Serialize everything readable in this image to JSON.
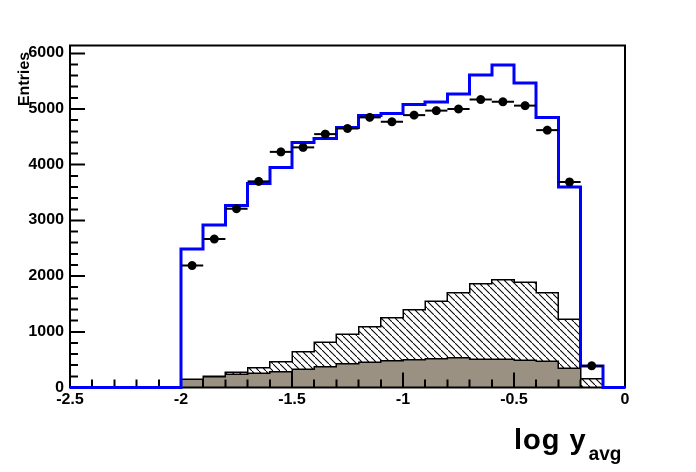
{
  "figure": {
    "background_color": "#ffffff",
    "frame_color": "#000000",
    "y_axis": {
      "title": "Entries",
      "range": [
        0,
        6140
      ],
      "major_tick_values": [
        0,
        1000,
        2000,
        3000,
        4000,
        5000,
        6000
      ],
      "tick_labels": [
        "0",
        "1000",
        "2000",
        "3000",
        "4000",
        "5000",
        "6000"
      ],
      "minor_tick_step": 200
    },
    "x_axis": {
      "title_main": "log y",
      "title_subscript": "avg",
      "range": [
        -2.5,
        0
      ],
      "major_tick_values": [
        -2.5,
        -2,
        -1.5,
        -1,
        -0.5,
        0
      ],
      "tick_labels": [
        "-2.5",
        "-2",
        "-1.5",
        "-1",
        "-0.5",
        "0"
      ],
      "minor_tick_step": 0.1
    }
  },
  "chart_data": {
    "type": "histogram",
    "title": "",
    "xlabel": "log y_avg",
    "ylabel": "Entries",
    "xlim": [
      -2.5,
      0
    ],
    "ylim": [
      0,
      6140
    ],
    "bin_start": -2.0,
    "bin_width": 0.1,
    "n_bins": 20,
    "grid": false,
    "legend": false,
    "series": [
      {
        "name": "blue-step-histogram",
        "style": "step-outline",
        "color": "#0000ff",
        "line_width": 3,
        "values": [
          2490,
          2920,
          3270,
          3660,
          3950,
          4400,
          4470,
          4670,
          4880,
          4920,
          5080,
          5130,
          5270,
          5610,
          5790,
          5470,
          4850,
          3600,
          390,
          0
        ]
      },
      {
        "name": "data-points",
        "style": "filled-circle-markers-with-bin-width-xerror",
        "color": "#000000",
        "marker_radius": 4.5,
        "x": [
          -1.95,
          -1.85,
          -1.75,
          -1.65,
          -1.55,
          -1.45,
          -1.35,
          -1.25,
          -1.15,
          -1.05,
          -0.95,
          -0.85,
          -0.75,
          -0.65,
          -0.55,
          -0.45,
          -0.35,
          -0.25,
          -0.15
        ],
        "values": [
          2190,
          2665,
          3210,
          3700,
          4230,
          4310,
          4550,
          4650,
          4850,
          4770,
          4890,
          4970,
          5000,
          5170,
          5130,
          5060,
          4620,
          3690,
          390
        ]
      },
      {
        "name": "hatched-histogram",
        "style": "white-fill-diagonal-hatch",
        "outline_color": "#000000",
        "hatch_color": "#000000",
        "values": [
          150,
          205,
          270,
          355,
          460,
          640,
          810,
          960,
          1090,
          1250,
          1400,
          1550,
          1700,
          1860,
          1930,
          1890,
          1705,
          1225,
          160,
          0
        ]
      },
      {
        "name": "gray-filled-histogram",
        "style": "solid-fill",
        "fill_color": "#9a9182",
        "outline_color": "#000000",
        "values": [
          145,
          190,
          235,
          255,
          280,
          325,
          370,
          425,
          450,
          480,
          495,
          520,
          530,
          510,
          505,
          490,
          475,
          345,
          0,
          0
        ]
      }
    ]
  }
}
